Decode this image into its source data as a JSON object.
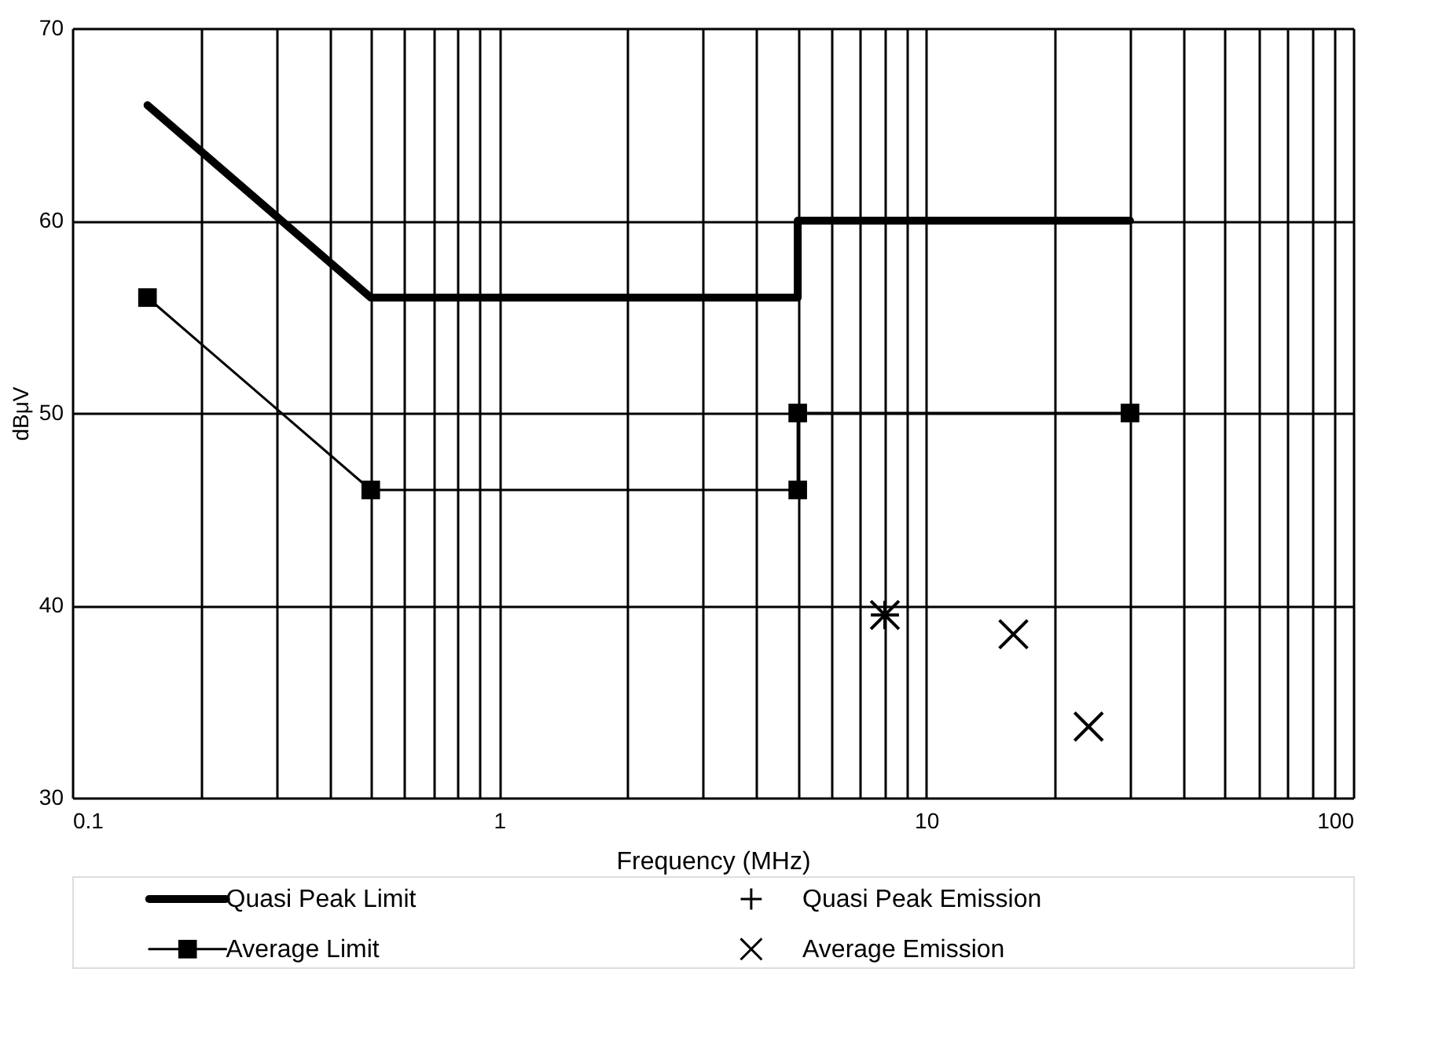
{
  "chart_data": {
    "type": "line",
    "xlabel": "Frequency (MHz)",
    "ylabel": "dBμV",
    "log": "x",
    "grid": true,
    "legend": "bottom",
    "xlim": [
      0.1,
      100
    ],
    "ylim": [
      30,
      70
    ],
    "xticks": [
      0.1,
      {
        "value": 0.2,
        "label": null
      },
      {
        "value": 0.3,
        "label": null
      },
      {
        "value": 0.4,
        "label": null
      },
      {
        "value": 0.5,
        "label": null
      },
      {
        "value": 0.6,
        "label": null
      },
      {
        "value": 0.7,
        "label": null
      },
      {
        "value": 0.8,
        "label": null
      },
      {
        "value": 0.9,
        "label": null
      },
      1,
      {
        "value": 2,
        "label": null
      },
      {
        "value": 3,
        "label": null
      },
      {
        "value": 4,
        "label": null
      },
      {
        "value": 5,
        "label": null
      },
      {
        "value": 6,
        "label": null
      },
      {
        "value": 7,
        "label": null
      },
      {
        "value": 8,
        "label": null
      },
      {
        "value": 9,
        "label": null
      },
      10,
      {
        "value": 20,
        "label": null
      },
      {
        "value": 30,
        "label": null
      },
      {
        "value": 40,
        "label": null
      },
      {
        "value": 50,
        "label": null
      },
      {
        "value": 60,
        "label": null
      },
      {
        "value": 70,
        "label": null
      },
      {
        "value": 80,
        "label": null
      },
      {
        "value": 90,
        "label": null
      },
      100
    ],
    "yticks": [
      30,
      40,
      50,
      60,
      70
    ],
    "series": [
      {
        "name": "Quasi Peak Limit",
        "color": "#000000",
        "marker": "none",
        "x": [
          0.15,
          0.5,
          5,
          5,
          30
        ],
        "values": [
          66,
          56,
          56,
          60,
          60
        ]
      },
      {
        "name": "Average Limit",
        "color": "#000000",
        "marker": "square",
        "x": [
          0.15,
          0.5,
          5,
          5,
          30
        ],
        "values": [
          56,
          46,
          46,
          50,
          50
        ]
      },
      {
        "name": "Quasi Peak Emission",
        "type": "scatter",
        "color": "#000000",
        "marker": "cross",
        "x": [
          8
        ],
        "values": [
          39.5
        ]
      },
      {
        "name": "Average Emission",
        "type": "scatter",
        "color": "#000000",
        "marker": "x",
        "x": [
          8,
          16,
          24
        ],
        "values": [
          39.5,
          38.5,
          33.7
        ]
      }
    ]
  }
}
